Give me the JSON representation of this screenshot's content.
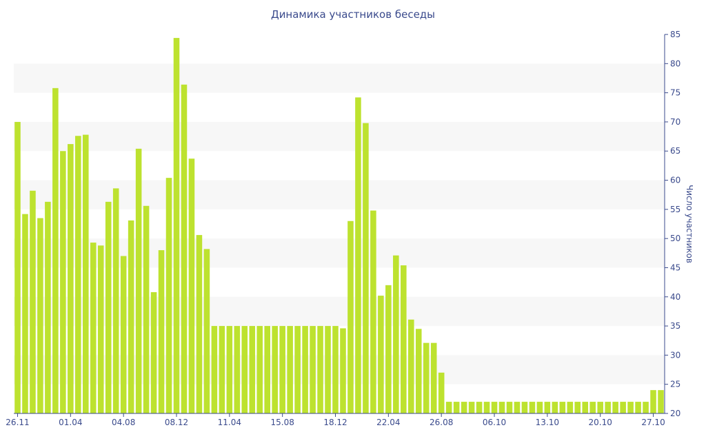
{
  "chart_data": {
    "type": "bar",
    "title": "Динамика участников беседы",
    "xlabel": "",
    "ylabel": "Число участников",
    "ylim": [
      20,
      85
    ],
    "yticks": [
      20,
      25,
      30,
      35,
      40,
      45,
      50,
      55,
      60,
      65,
      70,
      75,
      80,
      85
    ],
    "y_axis_position": "right",
    "grid": "alternating horizontal bands",
    "bar_color": "#bde22f",
    "band_color": "#f7f7f7",
    "text_color": "#3a4a8c",
    "x_tick_labels": [
      {
        "index": 0,
        "label": "26.11"
      },
      {
        "index": 7,
        "label": "01.04"
      },
      {
        "index": 14,
        "label": "04.08"
      },
      {
        "index": 21,
        "label": "08.12"
      },
      {
        "index": 28,
        "label": "11.04"
      },
      {
        "index": 35,
        "label": "15.08"
      },
      {
        "index": 42,
        "label": "18.12"
      },
      {
        "index": 49,
        "label": "22.04"
      },
      {
        "index": 56,
        "label": "26.08"
      },
      {
        "index": 63,
        "label": "06.10"
      },
      {
        "index": 70,
        "label": "13.10"
      },
      {
        "index": 77,
        "label": "20.10"
      },
      {
        "index": 84,
        "label": "27.10"
      }
    ],
    "values": [
      70,
      54.2,
      58.2,
      53.5,
      56.3,
      75.8,
      65,
      66.2,
      67.6,
      67.8,
      49.3,
      48.8,
      56.3,
      58.6,
      47,
      53.1,
      65.4,
      55.6,
      40.8,
      48,
      60.4,
      84.4,
      76.4,
      63.7,
      50.6,
      48.2,
      35,
      35,
      35,
      35,
      35,
      35,
      35,
      35,
      35,
      35,
      35,
      35,
      35,
      35,
      35,
      35,
      35,
      34.6,
      53,
      74.2,
      69.8,
      54.8,
      40.2,
      42,
      47.1,
      45.4,
      36.1,
      34.5,
      32.1,
      32.1,
      27,
      22,
      22,
      22,
      22,
      22,
      22,
      22,
      22,
      22,
      22,
      22,
      22,
      22,
      22,
      22,
      22,
      22,
      22,
      22,
      22,
      22,
      22,
      22,
      22,
      22,
      22,
      22,
      24,
      24
    ]
  }
}
